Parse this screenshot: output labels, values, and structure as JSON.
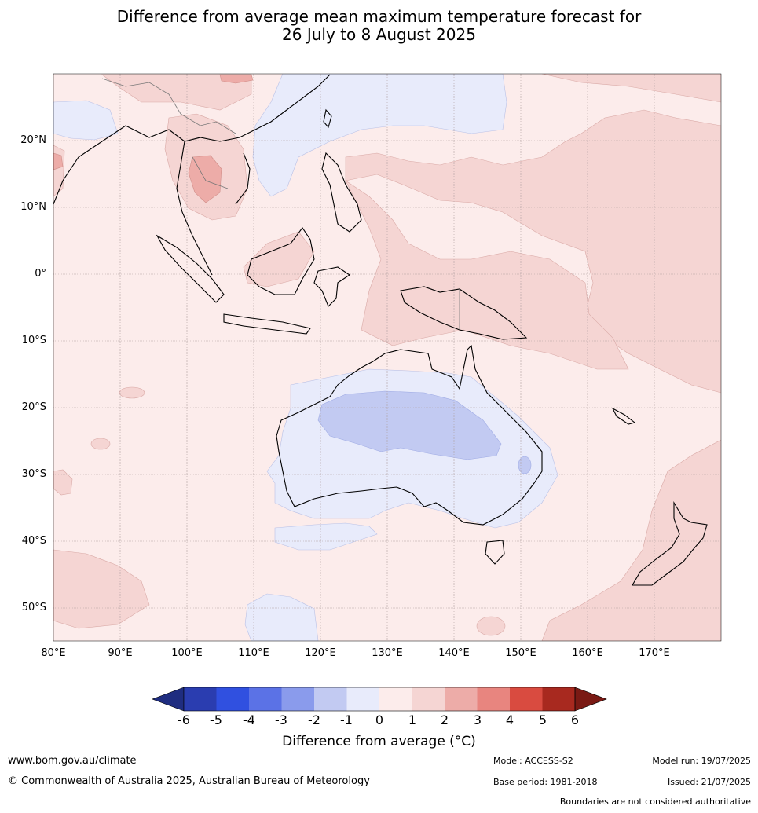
{
  "title": {
    "line1": "Difference from average mean maximum temperature forecast for",
    "line2": "26 July to 8 August 2025"
  },
  "map": {
    "lat_labels": [
      "20°N",
      "10°N",
      "0°",
      "10°S",
      "20°S",
      "30°S",
      "40°S",
      "50°S"
    ],
    "lon_labels": [
      "80°E",
      "90°E",
      "100°E",
      "110°E",
      "120°E",
      "130°E",
      "140°E",
      "150°E",
      "160°E",
      "170°E"
    ]
  },
  "colorbar": {
    "ticks": [
      "-6",
      "-5",
      "-4",
      "-3",
      "-2",
      "-1",
      "0",
      "1",
      "2",
      "3",
      "4",
      "5",
      "6"
    ],
    "colors": [
      "#1f2d80",
      "#2a3db0",
      "#3050e0",
      "#5b72e6",
      "#8a9bec",
      "#c2caf2",
      "#e8ebfb",
      "#fceceb",
      "#f5d5d3",
      "#edaca8",
      "#e8857f",
      "#d94b40",
      "#a8291f",
      "#7a1a14"
    ],
    "label": "Difference from average (°C)"
  },
  "footer": {
    "website": "www.bom.gov.au/climate",
    "copyright": "© Commonwealth of Australia 2025, Australian Bureau of Meteorology",
    "model": "Model: ACCESS-S2",
    "base_period": "Base period: 1981-2018",
    "model_run": "Model run: 19/07/2025",
    "issued": "Issued: 21/07/2025",
    "disclaimer": "Boundaries are not considered authoritative"
  }
}
